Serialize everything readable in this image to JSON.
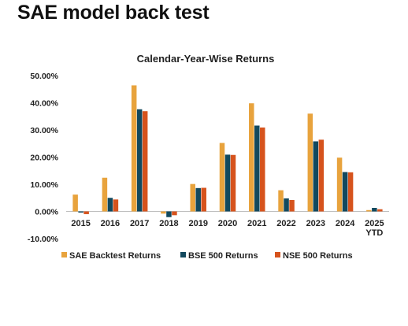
{
  "page": {
    "title": "SAE model back test"
  },
  "chart_data": {
    "type": "bar",
    "title": "Calendar-Year-Wise Returns",
    "xlabel": "",
    "ylabel": "",
    "categories": [
      "2015",
      "2016",
      "2017",
      "2018",
      "2019",
      "2020",
      "2021",
      "2022",
      "2023",
      "2024",
      "2025\nYTD"
    ],
    "series": [
      {
        "name": "SAE Backtest Returns",
        "color": "#E8A33D",
        "values": [
          6.2,
          12.4,
          46.4,
          -0.8,
          10.1,
          25.2,
          39.8,
          7.8,
          36.0,
          19.8,
          0.5
        ]
      },
      {
        "name": "BSE 500 Returns",
        "color": "#12495E",
        "values": [
          -0.4,
          5.0,
          37.6,
          -2.1,
          8.6,
          20.9,
          31.6,
          4.8,
          25.8,
          14.5,
          1.3
        ]
      },
      {
        "name": "NSE 500 Returns",
        "color": "#D6531D",
        "values": [
          -1.0,
          4.4,
          36.9,
          -1.4,
          8.7,
          20.8,
          30.9,
          4.2,
          26.4,
          14.4,
          0.8
        ]
      }
    ],
    "ylim": [
      -10,
      50
    ],
    "yticks": [
      -10,
      0,
      10,
      20,
      30,
      40,
      50
    ],
    "ytick_labels": [
      "-10.00%",
      "0.00%",
      "10.00%",
      "20.00%",
      "30.00%",
      "40.00%",
      "50.00%"
    ],
    "grid": false,
    "legend_position": "bottom"
  }
}
